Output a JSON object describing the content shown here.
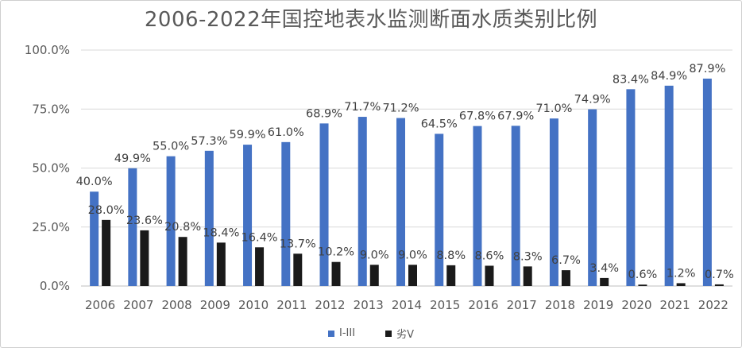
{
  "chart_data": {
    "type": "bar",
    "title": "2006-2022年国控地表水监测断面水质类别比例",
    "categories": [
      "2006",
      "2007",
      "2008",
      "2009",
      "2010",
      "2011",
      "2012",
      "2013",
      "2014",
      "2015",
      "2016",
      "2017",
      "2018",
      "2019",
      "2020",
      "2021",
      "2022"
    ],
    "series": [
      {
        "name": "I-III",
        "color": "#4472c4",
        "values": [
          40.0,
          49.9,
          55.0,
          57.3,
          59.9,
          61.0,
          68.9,
          71.7,
          71.2,
          64.5,
          67.8,
          67.9,
          71.0,
          74.9,
          83.4,
          84.9,
          87.9
        ],
        "labels": [
          "40.0%",
          "49.9%",
          "55.0%",
          "57.3%",
          "59.9%",
          "61.0%",
          "68.9%",
          "71.7%",
          "71.2%",
          "64.5%",
          "67.8%",
          "67.9%",
          "71.0%",
          "74.9%",
          "83.4%",
          "84.9%",
          "87.9%"
        ]
      },
      {
        "name": "劣V",
        "color": "#1a1a1a",
        "values": [
          28.0,
          23.6,
          20.8,
          18.4,
          16.4,
          13.7,
          10.2,
          9.0,
          9.0,
          8.8,
          8.6,
          8.3,
          6.7,
          3.4,
          0.6,
          1.2,
          0.7
        ],
        "labels": [
          "28.0%",
          "23.6%",
          "20.8%",
          "18.4%",
          "16.4%",
          "13.7%",
          "10.2%",
          "9.0%",
          "9.0%",
          "8.8%",
          "8.6%",
          "8.3%",
          "6.7%",
          "3.4%",
          "0.6%",
          "1.2%",
          "0.7%"
        ]
      }
    ],
    "ylim": [
      0,
      100
    ],
    "yticks": [
      "0.0%",
      "25.0%",
      "50.0%",
      "75.0%",
      "100.0%"
    ],
    "ytick_values": [
      0,
      25,
      50,
      75,
      100
    ],
    "grid": true,
    "legend_position": "bottom"
  }
}
